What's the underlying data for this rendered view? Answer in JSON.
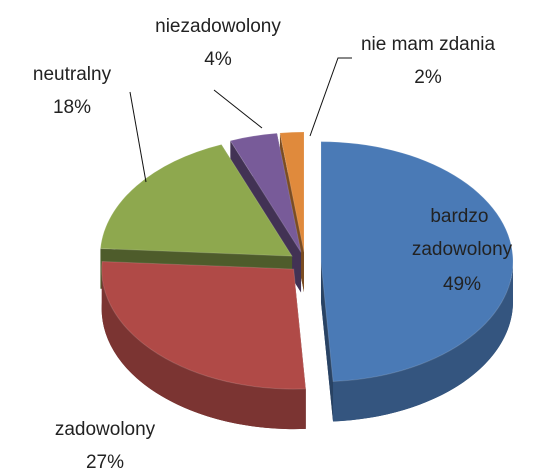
{
  "chart_data": {
    "type": "pie3d",
    "categories": [
      "bardzo zadowolony",
      "zadowolony",
      "neutralny",
      "niezadowolony",
      "nie mam zdania"
    ],
    "values": [
      49,
      27,
      18,
      4,
      2
    ],
    "value_labels": [
      "49%",
      "27%",
      "18%",
      "4%",
      "2%"
    ],
    "colors": [
      "#4a7ab6",
      "#b04a47",
      "#8ea84e",
      "#785b99",
      "#e08a3c"
    ]
  }
}
